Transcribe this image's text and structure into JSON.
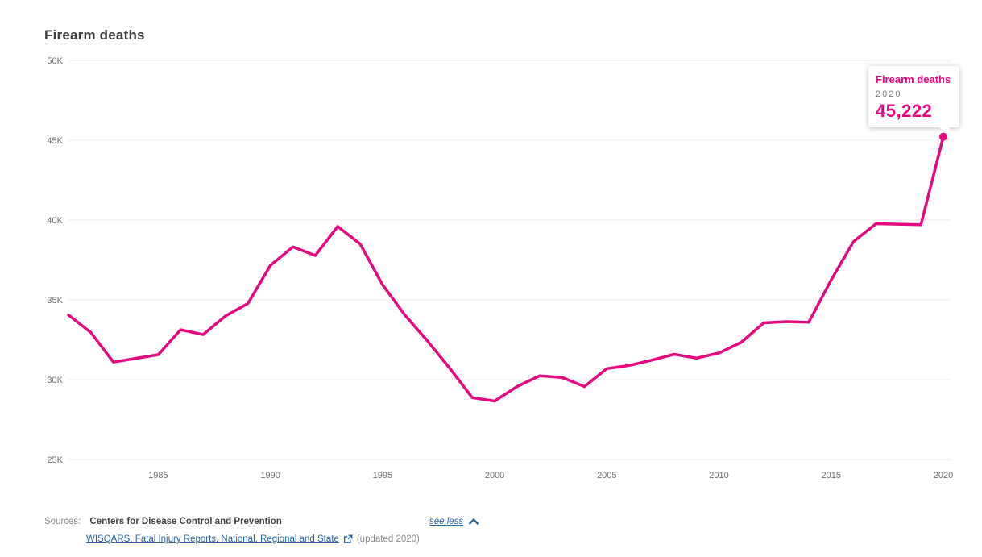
{
  "title": "Firearm deaths",
  "colors": {
    "accent": "#e5087e",
    "link_blue": "#2a66a5",
    "grid": "#ececec",
    "tick_text": "#6f6f6f"
  },
  "chart_data": {
    "type": "line",
    "title": "Firearm deaths",
    "series_name": "Firearm deaths",
    "x": [
      1981,
      1982,
      1983,
      1984,
      1985,
      1986,
      1987,
      1988,
      1989,
      1990,
      1991,
      1992,
      1993,
      1994,
      1995,
      1996,
      1997,
      1998,
      1999,
      2000,
      2001,
      2002,
      2003,
      2004,
      2005,
      2006,
      2007,
      2008,
      2009,
      2010,
      2011,
      2012,
      2013,
      2014,
      2015,
      2016,
      2017,
      2018,
      2019,
      2020
    ],
    "values": [
      34050,
      32957,
      31099,
      31331,
      31566,
      33126,
      32824,
      33989,
      34776,
      37155,
      38317,
      37776,
      39595,
      38505,
      35957,
      34040,
      32436,
      30708,
      28874,
      28663,
      29573,
      30242,
      30136,
      29569,
      30694,
      30896,
      31224,
      31593,
      31347,
      31672,
      32351,
      33563,
      33636,
      33594,
      36252,
      38658,
      39773,
      39740,
      39707,
      45222
    ],
    "ylim": [
      25000,
      50000
    ],
    "yticks": [
      {
        "value": 25000,
        "label": "25K"
      },
      {
        "value": 30000,
        "label": "30K"
      },
      {
        "value": 35000,
        "label": "35K"
      },
      {
        "value": 40000,
        "label": "40K"
      },
      {
        "value": 45000,
        "label": "45K"
      },
      {
        "value": 50000,
        "label": "50K"
      }
    ],
    "xticks": [
      "1985",
      "1990",
      "1995",
      "2000",
      "2005",
      "2010",
      "2015",
      "2020"
    ],
    "grid": true,
    "legend": "none",
    "line_color": "#e5087e",
    "highlighted_point": {
      "x": 2020,
      "value": 45222
    }
  },
  "tooltip": {
    "series_label": "Firearm deaths",
    "year": "2020",
    "value": "45,222"
  },
  "sources": {
    "label": "Sources:",
    "organization": "Centers for Disease Control and Prevention",
    "link_label": "WISQARS, Fatal Injury Reports, National, Regional and State",
    "external_link_icon": "external-link",
    "updated": "(updated 2020)",
    "see_less_label": "see less",
    "see_less_icon": "chevron-up"
  }
}
